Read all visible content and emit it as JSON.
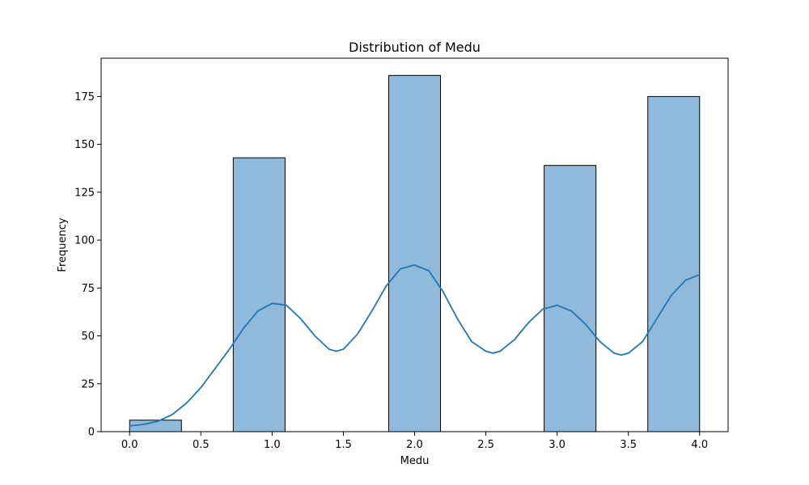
{
  "chart_data": {
    "type": "bar",
    "title": "Distribution of Medu",
    "xlabel": "Medu",
    "ylabel": "Frequency",
    "xlim": [
      -0.2,
      4.2
    ],
    "ylim": [
      0,
      195
    ],
    "xticks": [
      "0.0",
      "0.5",
      "1.0",
      "1.5",
      "2.0",
      "2.5",
      "3.0",
      "3.5",
      "4.0"
    ],
    "yticks": [
      "0",
      "25",
      "50",
      "75",
      "100",
      "125",
      "150",
      "175"
    ],
    "bins": [
      {
        "x0": 0.0,
        "x1": 0.3636,
        "value": 6
      },
      {
        "x0": 0.7273,
        "x1": 1.0909,
        "value": 143
      },
      {
        "x0": 1.8182,
        "x1": 2.1818,
        "value": 186
      },
      {
        "x0": 2.9091,
        "x1": 3.2727,
        "value": 139
      },
      {
        "x0": 3.6364,
        "x1": 4.0,
        "value": 175
      }
    ],
    "kde": {
      "x": [
        0.0,
        0.1,
        0.2,
        0.3,
        0.4,
        0.5,
        0.6,
        0.7,
        0.8,
        0.9,
        1.0,
        1.1,
        1.2,
        1.3,
        1.4,
        1.45,
        1.5,
        1.6,
        1.7,
        1.8,
        1.9,
        2.0,
        2.1,
        2.2,
        2.3,
        2.4,
        2.5,
        2.55,
        2.6,
        2.7,
        2.8,
        2.9,
        3.0,
        3.1,
        3.2,
        3.3,
        3.4,
        3.45,
        3.5,
        3.6,
        3.7,
        3.8,
        3.9,
        4.0
      ],
      "y": [
        3,
        3.8,
        5.5,
        9,
        15,
        23,
        33,
        43,
        54,
        63,
        67,
        66,
        59,
        50,
        43,
        42,
        43,
        51,
        63,
        76,
        85,
        87,
        84,
        73,
        59,
        47,
        42,
        41,
        42,
        48,
        57,
        64,
        66,
        63,
        56,
        47,
        41,
        40,
        41,
        47,
        59,
        71,
        79,
        82
      ],
      "color": "#1f77b4"
    },
    "bar_fill": "#8fbadb",
    "bar_edge": "#000000",
    "grid": false,
    "legend": "none"
  }
}
